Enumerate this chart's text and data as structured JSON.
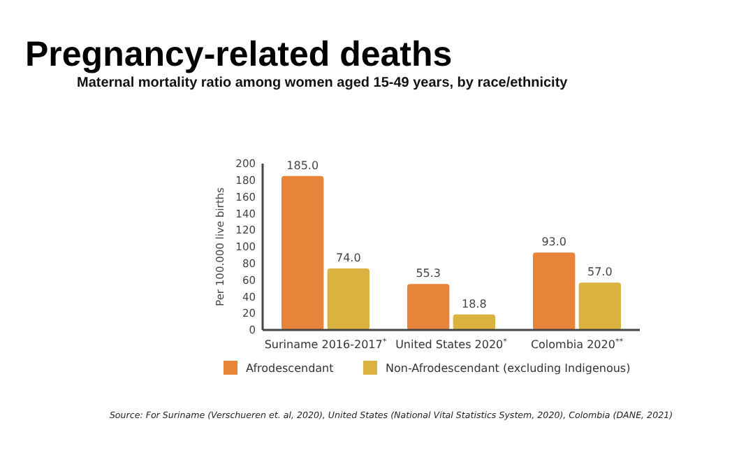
{
  "chart_data": {
    "type": "bar",
    "title": "Pregnancy-related deaths",
    "subtitle": "Maternal mortality ratio among women aged 15-49 years, by race/ethnicity",
    "ylabel": "Per 100.000 live births",
    "categories": [
      "Suriname 2016-2017$^{*}$",
      "United States 2020$^{*}$",
      "Colombia 2020$^{**}$"
    ],
    "series": [
      {
        "name": "Afrodescendant",
        "color": "#e8843a",
        "values": [
          185.0,
          55.3,
          93.0
        ]
      },
      {
        "name": "Non-Afrodescendant (excluding Indigenous)",
        "color": "#d9b23f",
        "values": [
          74.0,
          18.8,
          57.0
        ]
      }
    ],
    "value_labels": [
      [
        "185.0",
        "55.3",
        "93.0"
      ],
      [
        "74.0",
        "18.8",
        "57.0"
      ]
    ],
    "ylim": [
      0,
      200
    ],
    "yticks": [
      0,
      20,
      40,
      60,
      80,
      100,
      120,
      140,
      160,
      180,
      200
    ],
    "grid": false,
    "legend": "bottom",
    "annotations": [
      "Source: For Suriname (Verschueren et. al, 2020), United States (National Vital Statistics System, 2020), Colombia (DANE, 2021)"
    ]
  }
}
